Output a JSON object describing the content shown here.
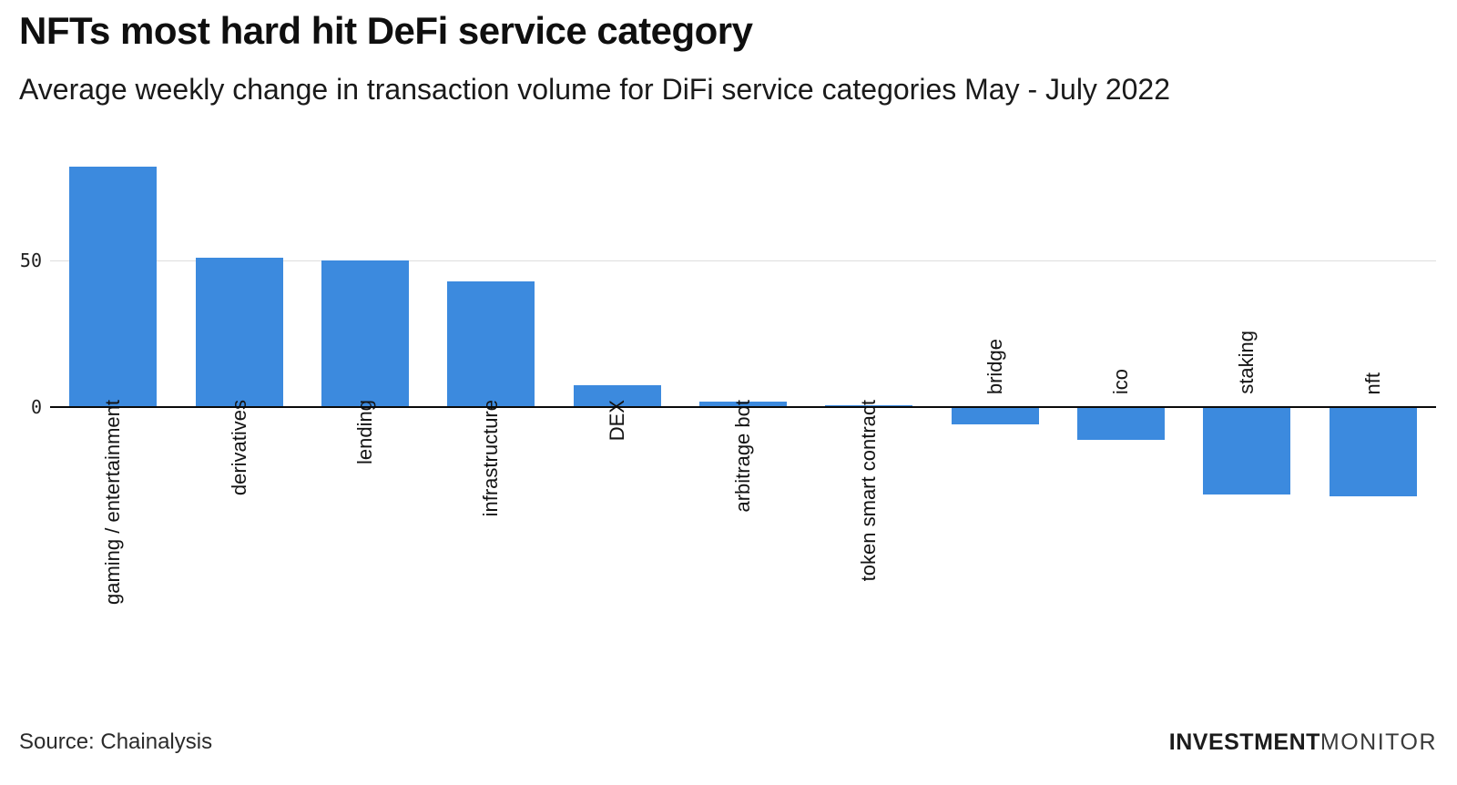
{
  "header": {
    "title": "NFTs most hard hit DeFi service category",
    "subtitle": "Average weekly change in transaction volume for DiFi service categories May - July 2022"
  },
  "chart_data": {
    "type": "bar",
    "title": "NFTs most hard hit DeFi service category",
    "subtitle": "Average weekly change in transaction volume for DiFi service categories May - July 2022",
    "categories": [
      "gaming / entertainment",
      "derivatives",
      "lending",
      "infrastructure",
      "DEX",
      "arbitrage bot",
      "token smart contract",
      "bridge",
      "ico",
      "staking",
      "nft"
    ],
    "values": [
      82,
      51,
      50,
      43,
      7.5,
      2,
      0.7,
      -5.5,
      -11,
      -29.5,
      -30
    ],
    "xlabel": "",
    "ylabel": "",
    "yticks": [
      0,
      50
    ],
    "ylim": [
      -35,
      92
    ],
    "grid": "single-horizontal-gridline-at-50",
    "legend": false,
    "bar_color": "#3c8ade",
    "axis_color": "#0a0a0a",
    "gridline_color": "#dddddd",
    "label_rotation": "vertical-bottom-to-top",
    "negative_label_position": "above-axis"
  },
  "footer": {
    "source": "Source: Chainalysis",
    "brand": {
      "bold": "INVESTMENT",
      "light": "MONITOR"
    }
  }
}
